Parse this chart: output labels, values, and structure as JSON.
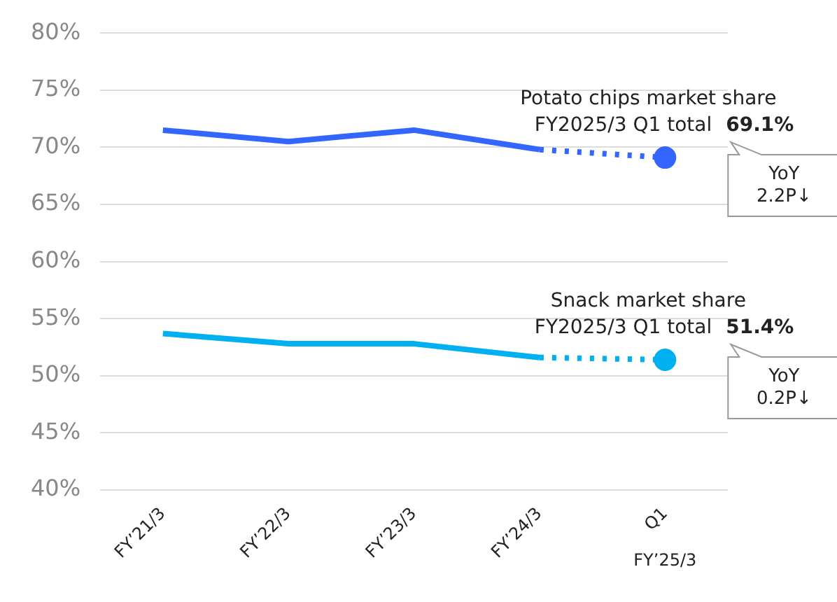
{
  "chart_data": {
    "type": "line",
    "categories": [
      "FY’21/3",
      "FY’22/3",
      "FY’23/3",
      "FY’24/3",
      "Q1"
    ],
    "series": [
      {
        "name": "Potato chips market share",
        "color": "#3366ff",
        "values": [
          71.5,
          70.5,
          71.5,
          69.8,
          69.1
        ]
      },
      {
        "name": "Snack market share",
        "color": "#00b0f0",
        "values": [
          53.7,
          52.8,
          52.8,
          51.6,
          51.4
        ]
      }
    ],
    "ylim": [
      40,
      80
    ],
    "yticks": [
      {
        "value": 40,
        "label": "40%"
      },
      {
        "value": 45,
        "label": "45%"
      },
      {
        "value": 50,
        "label": "50%"
      },
      {
        "value": 55,
        "label": "55%"
      },
      {
        "value": 60,
        "label": "60%"
      },
      {
        "value": 65,
        "label": "65%"
      },
      {
        "value": 70,
        "label": "70%"
      },
      {
        "value": 75,
        "label": "75%"
      },
      {
        "value": 80,
        "label": "80%"
      }
    ],
    "grid": "y",
    "legend": false,
    "annotations": [
      "FY2025/3 Q1 total 69.1%",
      "YoY 2.2P↓",
      "FY2025/3 Q1 total 51.4%",
      "YoY 0.2P↓",
      "FY’25/3"
    ]
  }
}
